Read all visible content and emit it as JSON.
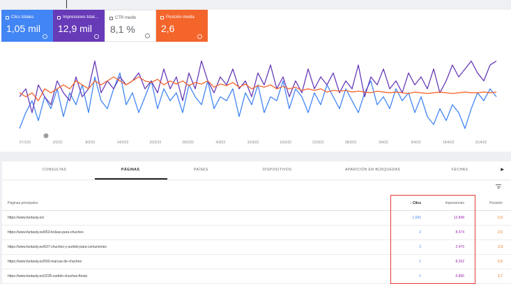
{
  "summary": {
    "clicks": {
      "label": "Clics totales",
      "value": "1,05 mil"
    },
    "impressions": {
      "label": "Impresiones total...",
      "value": "12,9 mil"
    },
    "ctr": {
      "label": "CTR medio",
      "value": "8,1 %"
    },
    "position": {
      "label": "Posición media",
      "value": "2,6"
    }
  },
  "chart_data": {
    "type": "line",
    "x_ticks": [
      "27/1/22",
      "2/2/22",
      "8/2/22",
      "14/2/22",
      "20/2/22",
      "26/2/22",
      "4/3/22",
      "10/3/22",
      "16/3/22",
      "22/3/22",
      "28/3/22",
      "3/4/22",
      "9/4/22",
      "15/4/22",
      "21/4/22"
    ],
    "series": [
      {
        "color": "#4285f4",
        "values": [
          0.1,
          0.3,
          0.45,
          0.2,
          0.5,
          0.35,
          0.6,
          0.25,
          0.55,
          0.4,
          0.65,
          0.3,
          0.75,
          0.45,
          0.35,
          0.6,
          0.8,
          0.4,
          0.55,
          0.3,
          0.5,
          0.7,
          0.35,
          0.6,
          0.45,
          0.55,
          0.3,
          0.65,
          0.5,
          0.4,
          0.7,
          0.35,
          0.5,
          0.45,
          0.6,
          0.25,
          0.55,
          0.4,
          0.65,
          0.3,
          0.5,
          0.45,
          0.7,
          0.35,
          0.6,
          0.5,
          0.3,
          0.55,
          0.4,
          0.65,
          0.5,
          0.35,
          0.6,
          0.45,
          0.3,
          0.55,
          0.7,
          0.4,
          0.5,
          0.35,
          0.6,
          0.45,
          0.55,
          0.3,
          0.5,
          0.25,
          0.15,
          0.35,
          0.2,
          0.4,
          0.3,
          0.1,
          0.35,
          0.55,
          0.45,
          0.6,
          0.5
        ]
      },
      {
        "color": "#673ab7",
        "values": [
          0.5,
          0.6,
          0.3,
          0.65,
          0.5,
          0.4,
          0.7,
          0.55,
          0.45,
          0.75,
          0.5,
          0.6,
          0.95,
          0.55,
          0.7,
          0.6,
          0.75,
          0.65,
          0.7,
          0.8,
          0.6,
          0.7,
          0.55,
          0.85,
          0.6,
          0.75,
          0.45,
          0.8,
          0.6,
          0.95,
          0.7,
          0.55,
          0.75,
          0.65,
          0.85,
          0.6,
          0.7,
          0.5,
          0.8,
          0.65,
          0.9,
          0.6,
          0.75,
          0.5,
          0.7,
          0.55,
          0.85,
          0.6,
          0.75,
          0.65,
          0.8,
          0.55,
          0.7,
          0.6,
          0.9,
          0.5,
          0.75,
          0.65,
          0.85,
          0.6,
          0.7,
          0.55,
          0.8,
          0.65,
          0.75,
          0.6,
          0.85,
          0.55,
          0.7,
          0.9,
          0.75,
          0.85,
          0.95,
          0.8,
          0.7,
          0.9,
          0.95
        ]
      },
      {
        "color": "#f4652c",
        "values": [
          0.55,
          0.5,
          0.55,
          0.45,
          0.6,
          0.55,
          0.6,
          0.65,
          0.6,
          0.7,
          0.65,
          0.6,
          0.7,
          0.65,
          0.7,
          0.75,
          0.7,
          0.65,
          0.7,
          0.75,
          0.7,
          0.68,
          0.72,
          0.65,
          0.7,
          0.66,
          0.7,
          0.64,
          0.68,
          0.66,
          0.7,
          0.62,
          0.66,
          0.64,
          0.68,
          0.62,
          0.66,
          0.6,
          0.64,
          0.62,
          0.65,
          0.6,
          0.63,
          0.6,
          0.62,
          0.58,
          0.6,
          0.58,
          0.6,
          0.56,
          0.58,
          0.57,
          0.58,
          0.56,
          0.57,
          0.56,
          0.55,
          0.57,
          0.56,
          0.55,
          0.56,
          0.55,
          0.54,
          0.56,
          0.55,
          0.54,
          0.55,
          0.56,
          0.55,
          0.54,
          0.55,
          0.56,
          0.55,
          0.55,
          0.56,
          0.55,
          0.56
        ]
      }
    ]
  },
  "tabs": {
    "consultas": "CONSULTAS",
    "paginas": "PÁGINAS",
    "paises": "PAÍSES",
    "dispositivos": "DISPOSITIVOS",
    "aparicion": "APARICIÓN EN BÚSQUEDAS",
    "fechas": "FECHAS",
    "more": "▶"
  },
  "table": {
    "headers": {
      "page": "Páginas principales",
      "clicks": "↓ Clics",
      "impressions": "Impresiones",
      "position": "Posición"
    },
    "rows": [
      {
        "url": "https://www.funtasty.es/",
        "clicks": "1.041",
        "impressions": "12.848",
        "position": "2,6"
      },
      {
        "url": "https://www.funtasty.es/653-bolsas-para-chuches",
        "clicks": "2",
        "impressions": "8.374",
        "position": "2,5"
      },
      {
        "url": "https://www.funtasty.es/637-chuches-y-surtido-para-comuniones",
        "clicks": "2",
        "impressions": "2.476",
        "position": "2,9"
      },
      {
        "url": "https://www.funtasty.es/593-marcas-de-chuches",
        "clicks": "1",
        "impressions": "8.292",
        "position": "2,5"
      },
      {
        "url": "https://www.funtasty.es/2235-surtido-chuches-fiesta",
        "clicks": "1",
        "impressions": "6.895",
        "position": "2,7"
      }
    ]
  }
}
